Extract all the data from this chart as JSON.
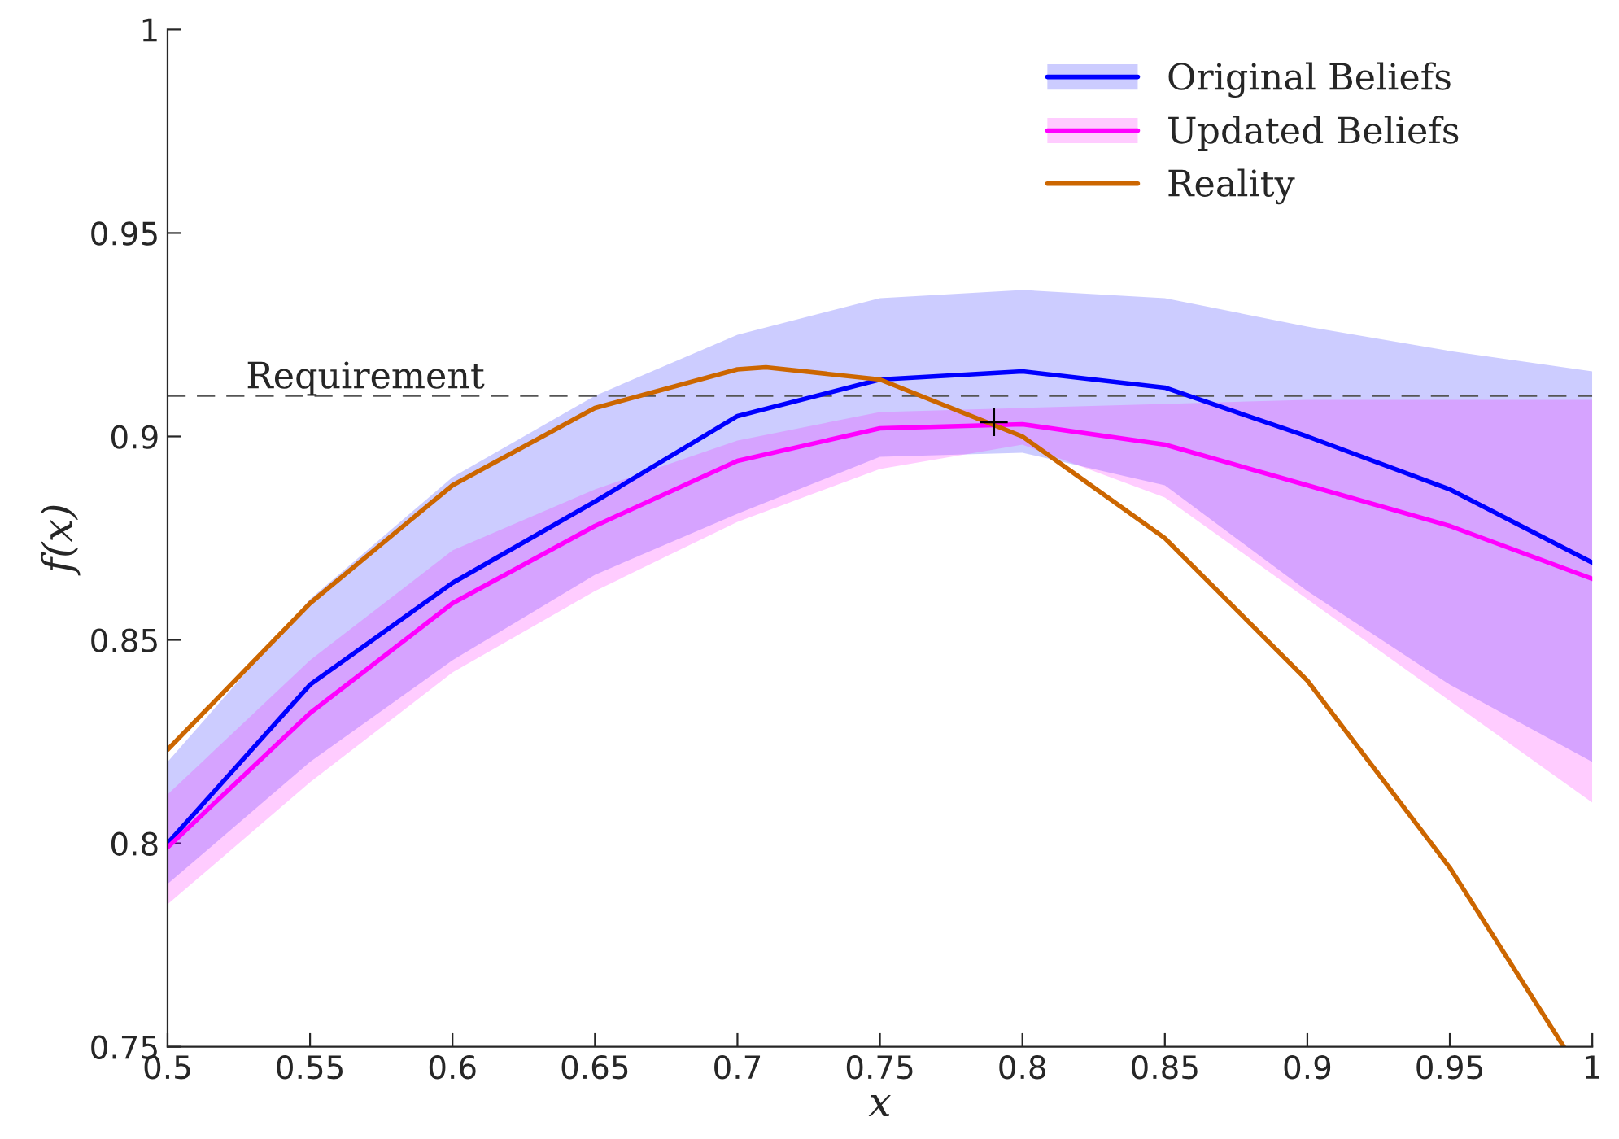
{
  "chart_data": {
    "type": "line",
    "xlabel": "x",
    "ylabel": "f(x)",
    "x": [
      0.5,
      0.55,
      0.6,
      0.65,
      0.7,
      0.75,
      0.8,
      0.85,
      0.9,
      0.95,
      1.0
    ],
    "series": [
      {
        "name": "Original Beliefs",
        "color": "#0000ff",
        "values": [
          0.8,
          0.839,
          0.864,
          0.884,
          0.905,
          0.914,
          0.916,
          0.912,
          0.9,
          0.887,
          0.869
        ],
        "lower": [
          0.79,
          0.82,
          0.845,
          0.866,
          0.881,
          0.895,
          0.896,
          0.888,
          0.862,
          0.839,
          0.82
        ],
        "upper": [
          0.82,
          0.86,
          0.89,
          0.91,
          0.925,
          0.934,
          0.936,
          0.934,
          0.927,
          0.921,
          0.916
        ]
      },
      {
        "name": "Updated Beliefs",
        "color": "#ff00ff",
        "values": [
          0.799,
          0.832,
          0.859,
          0.878,
          0.894,
          0.902,
          0.903,
          0.898,
          0.888,
          0.878,
          0.865
        ],
        "lower": [
          0.785,
          0.815,
          0.842,
          0.862,
          0.879,
          0.892,
          0.898,
          0.885,
          0.86,
          0.835,
          0.81
        ],
        "upper": [
          0.812,
          0.845,
          0.872,
          0.887,
          0.899,
          0.906,
          0.907,
          0.908,
          0.909,
          0.909,
          0.909
        ]
      },
      {
        "name": "Reality",
        "color": "#cc6600",
        "x": [
          0.5,
          0.55,
          0.6,
          0.65,
          0.7,
          0.71,
          0.75,
          0.8,
          0.85,
          0.9,
          0.95,
          0.99
        ],
        "values": [
          0.823,
          0.859,
          0.888,
          0.907,
          0.9165,
          0.917,
          0.914,
          0.9,
          0.875,
          0.84,
          0.794,
          0.75
        ]
      },
      {
        "type": "scatter",
        "marker": "cross",
        "color": "#000000",
        "x": [
          0.79
        ],
        "values": [
          0.9035
        ]
      }
    ],
    "ref_lines": [
      {
        "axis": "y",
        "value": 0.91,
        "label": "Requirement",
        "color": "#555555",
        "line_style": "dashed"
      }
    ],
    "xlim": [
      0.5,
      1
    ],
    "ylim": [
      0.75,
      1
    ],
    "xticks": [
      0.5,
      0.55,
      0.6,
      0.65,
      0.7,
      0.75,
      0.8,
      0.85,
      0.9,
      0.95,
      1
    ],
    "yticks": [
      0.75,
      0.8,
      0.85,
      0.9,
      0.95,
      1
    ],
    "grid": false,
    "legend": "top right"
  }
}
